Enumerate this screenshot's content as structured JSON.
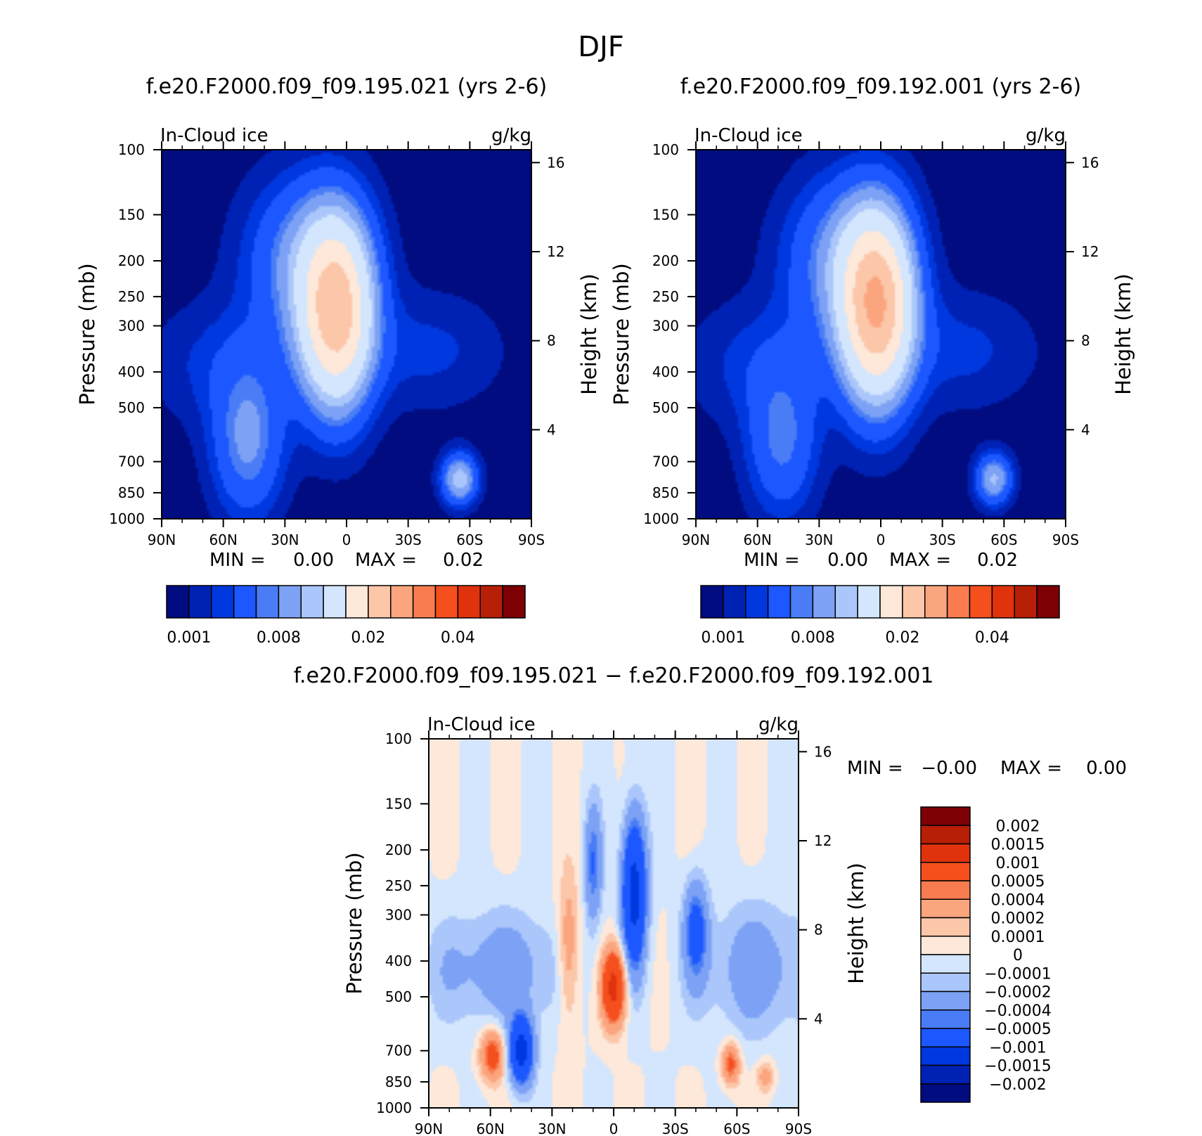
{
  "figure_title": "DJF",
  "colors": {
    "abs_levels": [
      "#000c80",
      "#0022b4",
      "#0038df",
      "#1c57ff",
      "#4a7df5",
      "#7da2f5",
      "#aac6fb",
      "#d4e6fd",
      "#fde8da",
      "#fcc6a9",
      "#fba57f",
      "#f97c50",
      "#f54f1e",
      "#e0330d",
      "#b71f06",
      "#7c0004"
    ],
    "diff_levels": [
      "#000c80",
      "#0022b4",
      "#0038df",
      "#1c57ff",
      "#4a7df5",
      "#7da2f5",
      "#aac6fb",
      "#d4e6fd",
      "#fde8da",
      "#fcc6a9",
      "#fba57f",
      "#f97c50",
      "#f54f1e",
      "#e0330d",
      "#b71f06",
      "#7c0004"
    ]
  },
  "chart_data": [
    {
      "id": "panel-a",
      "type": "heatmap",
      "title": "f.e20.F2000.f09_f09.195.021 (yrs 2-6)",
      "left_label": "In-Cloud ice",
      "right_label": "g/kg",
      "ylabel": "Pressure (mb)",
      "ylabel_right": "Height (km)",
      "x_ticks": [
        "90N",
        "60N",
        "30N",
        "0",
        "30S",
        "60S",
        "90S"
      ],
      "x_range": [
        90,
        -90
      ],
      "y_ticks": [
        100,
        150,
        200,
        250,
        300,
        400,
        500,
        700,
        850,
        1000
      ],
      "y_range": [
        100,
        1000
      ],
      "y_scale": "log",
      "right_ticks": [
        "16",
        "12",
        "8",
        "4"
      ],
      "min_label": "MIN =",
      "min_value": "0.00",
      "max_label": "MAX =",
      "max_value": "0.02",
      "colorbar_ticks": [
        "0.001",
        "0.008",
        "0.02",
        "0.04"
      ],
      "features": [
        {
          "lat": 5,
          "p": 280,
          "peak": 0.021,
          "wlat": 12,
          "wp": 2.2
        },
        {
          "lat": 20,
          "p": 200,
          "peak": 0.006,
          "wlat": 20,
          "wp": 2.0
        },
        {
          "lat": 48,
          "p": 620,
          "peak": 0.006,
          "wlat": 12,
          "wp": 1.8
        },
        {
          "lat": 60,
          "p": 380,
          "peak": 0.002,
          "wlat": 25,
          "wp": 1.5
        },
        {
          "lat": -55,
          "p": 780,
          "peak": 0.009,
          "wlat": 6,
          "wp": 0.6
        },
        {
          "lat": -40,
          "p": 350,
          "peak": 0.002,
          "wlat": 25,
          "wp": 1.4
        }
      ]
    },
    {
      "id": "panel-b",
      "type": "heatmap",
      "title": "f.e20.F2000.f09_f09.192.001 (yrs 2-6)",
      "left_label": "In-Cloud ice",
      "right_label": "g/kg",
      "ylabel": "Pressure (mb)",
      "ylabel_right": "Height (km)",
      "x_ticks": [
        "90N",
        "60N",
        "30N",
        "0",
        "30S",
        "60S",
        "90S"
      ],
      "x_range": [
        90,
        -90
      ],
      "y_ticks": [
        100,
        150,
        200,
        250,
        300,
        400,
        500,
        700,
        850,
        1000
      ],
      "y_range": [
        100,
        1000
      ],
      "y_scale": "log",
      "right_ticks": [
        "16",
        "12",
        "8",
        "4"
      ],
      "min_label": "MIN =",
      "min_value": "0.00",
      "max_label": "MAX =",
      "max_value": "0.02",
      "colorbar_ticks": [
        "0.001",
        "0.008",
        "0.02",
        "0.04"
      ],
      "features": [
        {
          "lat": 2,
          "p": 270,
          "peak": 0.023,
          "wlat": 12,
          "wp": 2.2
        },
        {
          "lat": 18,
          "p": 200,
          "peak": 0.006,
          "wlat": 20,
          "wp": 2.0
        },
        {
          "lat": 48,
          "p": 620,
          "peak": 0.005,
          "wlat": 12,
          "wp": 1.8
        },
        {
          "lat": 60,
          "p": 380,
          "peak": 0.002,
          "wlat": 25,
          "wp": 1.5
        },
        {
          "lat": -55,
          "p": 780,
          "peak": 0.008,
          "wlat": 6,
          "wp": 0.6
        },
        {
          "lat": -40,
          "p": 350,
          "peak": 0.002,
          "wlat": 25,
          "wp": 1.4
        }
      ]
    },
    {
      "id": "panel-diff",
      "type": "heatmap",
      "title": "f.e20.F2000.f09_f09.195.021 − f.e20.F2000.f09_f09.192.001",
      "left_label": "In-Cloud ice",
      "right_label": "g/kg",
      "ylabel": "Pressure (mb)",
      "ylabel_right": "Height (km)",
      "x_ticks": [
        "90N",
        "60N",
        "30N",
        "0",
        "30S",
        "60S",
        "90S"
      ],
      "x_range": [
        90,
        -90
      ],
      "y_ticks": [
        100,
        150,
        200,
        250,
        300,
        400,
        500,
        700,
        850,
        1000
      ],
      "y_range": [
        100,
        1000
      ],
      "y_scale": "log",
      "right_ticks": [
        "16",
        "12",
        "8",
        "4"
      ],
      "min_label": "MIN =",
      "min_value": "−0.00",
      "max_label": "MAX =",
      "max_value": "0.00",
      "colorbar_ticks": [
        "0.002",
        "0.0015",
        "0.001",
        "0.0005",
        "0.0004",
        "0.0002",
        "0.0001",
        "0",
        "−0.0001",
        "−0.0002",
        "−0.0004",
        "−0.0005",
        "−0.001",
        "−0.0015",
        "−0.002"
      ],
      "features": [
        {
          "lat": 0,
          "p": 470,
          "peak": 0.0012,
          "wlat": 4,
          "wp": 0.9
        },
        {
          "lat": 22,
          "p": 380,
          "peak": 0.0004,
          "wlat": 4,
          "wp": 1.8
        },
        {
          "lat": 59,
          "p": 720,
          "peak": 0.0007,
          "wlat": 4,
          "wp": 0.6
        },
        {
          "lat": -57,
          "p": 760,
          "peak": 0.0006,
          "wlat": 3,
          "wp": 0.5
        },
        {
          "lat": -74,
          "p": 820,
          "peak": 0.0003,
          "wlat": 3,
          "wp": 0.4
        },
        {
          "lat": -10,
          "p": 260,
          "peak": -0.0012,
          "wlat": 4,
          "wp": 1.8
        },
        {
          "lat": 45,
          "p": 700,
          "peak": -0.0012,
          "wlat": 4,
          "wp": 0.8
        },
        {
          "lat": 10,
          "p": 220,
          "peak": -0.0005,
          "wlat": 3,
          "wp": 1.4
        },
        {
          "lat": -40,
          "p": 330,
          "peak": -0.0006,
          "wlat": 4,
          "wp": 1.2
        },
        {
          "lat": 55,
          "p": 420,
          "peak": -0.0003,
          "wlat": 25,
          "wp": 1.4
        },
        {
          "lat": -70,
          "p": 420,
          "peak": -0.0003,
          "wlat": 20,
          "wp": 1.6
        }
      ]
    }
  ]
}
